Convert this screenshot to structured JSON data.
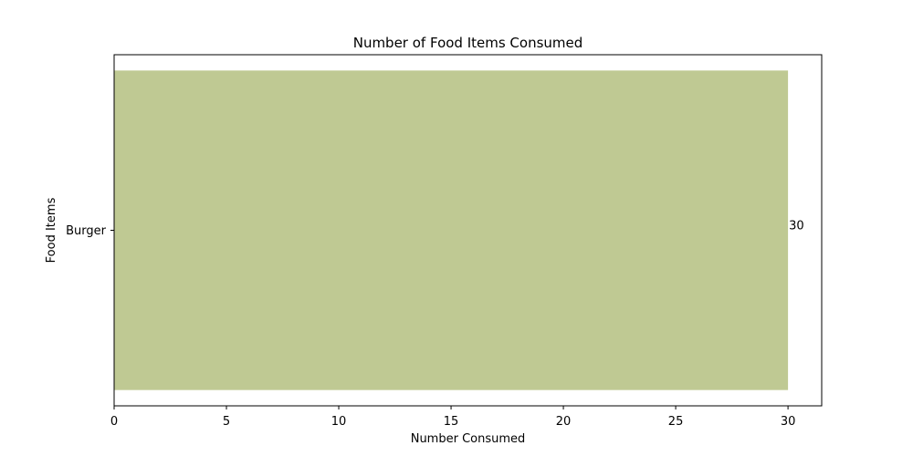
{
  "chart_data": {
    "type": "bar",
    "orientation": "horizontal",
    "title": "Number of Food Items Consumed",
    "xlabel": "Number Consumed",
    "ylabel": "Food Items",
    "categories": [
      "Burger"
    ],
    "values": [
      30
    ],
    "data_labels": [
      "30"
    ],
    "xlim": [
      0,
      31.5
    ],
    "xticks": [
      0,
      5,
      10,
      15,
      20,
      25,
      30
    ],
    "xtick_labels": [
      "0",
      "5",
      "10",
      "15",
      "20",
      "25",
      "30"
    ],
    "grid": false,
    "legend": "none",
    "bar_color": "#bfc993"
  }
}
